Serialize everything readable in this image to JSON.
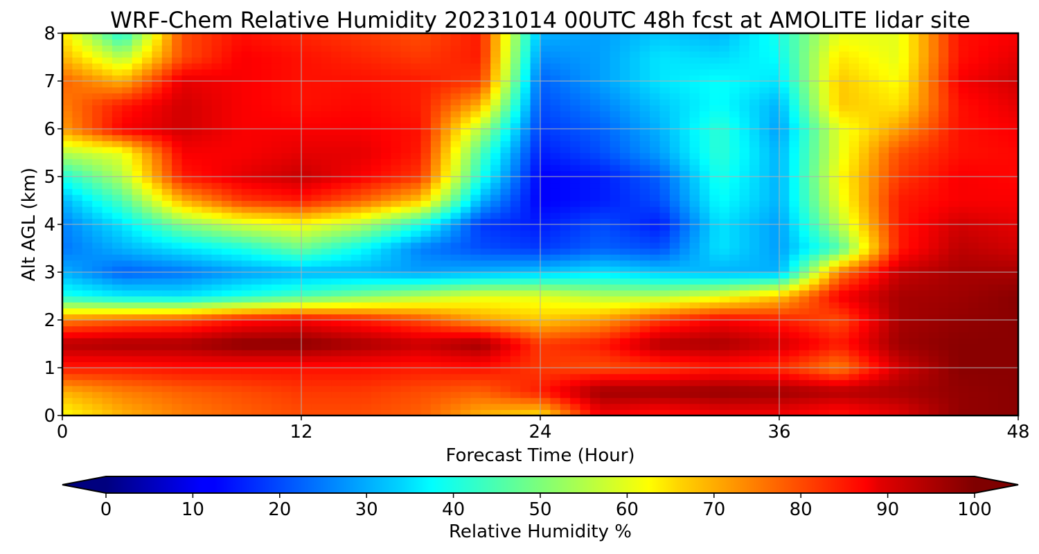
{
  "chart_data": {
    "type": "heatmap",
    "title": "WRF-Chem Relative Humidity 20231014 00UTC 48h fcst at AMOLITE lidar site",
    "xlabel": "Forecast Time (Hour)",
    "ylabel": "Alt AGL (km)",
    "xlim": [
      0,
      48
    ],
    "ylim": [
      0,
      8
    ],
    "x_ticks": [
      "0",
      "12",
      "24",
      "36",
      "48"
    ],
    "y_ticks": [
      "0",
      "1",
      "2",
      "3",
      "4",
      "5",
      "6",
      "7",
      "8"
    ],
    "grid": true,
    "colormap": "jet",
    "colorbar": {
      "label": "Relative Humidity %",
      "range": [
        0,
        100
      ],
      "ticks": [
        "0",
        "10",
        "20",
        "30",
        "40",
        "50",
        "60",
        "70",
        "80",
        "90",
        "100"
      ],
      "extend": "both",
      "orientation": "horizontal"
    },
    "x": [
      0,
      3,
      6,
      9,
      12,
      15,
      18,
      21,
      24,
      27,
      30,
      33,
      36,
      39,
      42,
      45,
      48
    ],
    "y": [
      0,
      0.5,
      1,
      1.5,
      2,
      2.5,
      3,
      3.5,
      4,
      4.5,
      5,
      5.5,
      6,
      6.5,
      7,
      7.5,
      8
    ],
    "z": [
      [
        62,
        70,
        75,
        78,
        80,
        80,
        78,
        70,
        65,
        88,
        85,
        88,
        88,
        85,
        90,
        98,
        99
      ],
      [
        70,
        75,
        78,
        80,
        82,
        82,
        80,
        78,
        85,
        97,
        97,
        98,
        97,
        95,
        96,
        98,
        99
      ],
      [
        85,
        85,
        86,
        86,
        86,
        86,
        85,
        86,
        82,
        80,
        82,
        85,
        83,
        75,
        92,
        99,
        99
      ],
      [
        95,
        96,
        96,
        99,
        99,
        96,
        93,
        97,
        82,
        85,
        95,
        96,
        92,
        85,
        97,
        99,
        99
      ],
      [
        75,
        78,
        80,
        86,
        88,
        85,
        80,
        72,
        68,
        72,
        82,
        88,
        85,
        80,
        96,
        98,
        99
      ],
      [
        40,
        36,
        35,
        40,
        45,
        50,
        55,
        60,
        60,
        55,
        55,
        60,
        68,
        88,
        96,
        97,
        99
      ],
      [
        30,
        22,
        24,
        28,
        30,
        30,
        28,
        30,
        32,
        35,
        32,
        30,
        30,
        75,
        93,
        96,
        96
      ],
      [
        24,
        30,
        35,
        40,
        48,
        38,
        25,
        20,
        18,
        22,
        20,
        35,
        28,
        45,
        85,
        94,
        92
      ],
      [
        25,
        35,
        50,
        58,
        62,
        55,
        40,
        18,
        15,
        20,
        15,
        35,
        28,
        55,
        85,
        92,
        90
      ],
      [
        30,
        45,
        70,
        82,
        85,
        78,
        68,
        30,
        12,
        15,
        20,
        38,
        30,
        60,
        85,
        88,
        88
      ],
      [
        40,
        55,
        85,
        90,
        93,
        88,
        82,
        40,
        12,
        15,
        22,
        40,
        30,
        62,
        82,
        88,
        87
      ],
      [
        55,
        60,
        88,
        88,
        90,
        90,
        85,
        45,
        15,
        20,
        28,
        42,
        30,
        60,
        80,
        86,
        87
      ],
      [
        72,
        88,
        92,
        88,
        88,
        88,
        86,
        55,
        18,
        22,
        30,
        42,
        28,
        60,
        72,
        86,
        88
      ],
      [
        75,
        85,
        92,
        88,
        86,
        87,
        85,
        70,
        20,
        25,
        32,
        38,
        30,
        68,
        65,
        86,
        90
      ],
      [
        78,
        70,
        90,
        88,
        86,
        86,
        85,
        82,
        22,
        28,
        35,
        38,
        35,
        68,
        62,
        88,
        92
      ],
      [
        70,
        55,
        80,
        88,
        86,
        84,
        82,
        85,
        26,
        28,
        35,
        34,
        38,
        65,
        60,
        86,
        90
      ],
      [
        65,
        40,
        80,
        86,
        84,
        82,
        80,
        85,
        30,
        28,
        32,
        30,
        40,
        60,
        60,
        86,
        88
      ]
    ]
  }
}
